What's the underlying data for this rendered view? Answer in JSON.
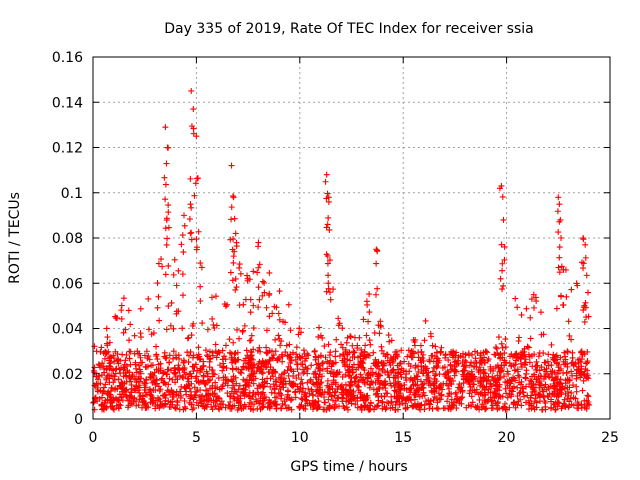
{
  "chart_data": {
    "type": "scatter",
    "title": "Day 335 of 2019, Rate Of TEC Index for receiver ssia",
    "xlabel": "GPS time / hours",
    "ylabel": "ROTI / TECUs",
    "xlim": [
      0,
      25
    ],
    "ylim": [
      0,
      0.16
    ],
    "x_ticks": [
      0,
      5,
      10,
      15,
      20,
      25
    ],
    "x_tick_labels": [
      "0",
      "5",
      "10",
      "15",
      "20",
      "25"
    ],
    "y_ticks": [
      0,
      0.02,
      0.04,
      0.06,
      0.08,
      0.1,
      0.12,
      0.14,
      0.16
    ],
    "y_tick_labels": [
      "0",
      "0.02",
      "0.04",
      "0.06",
      "0.08",
      "0.1",
      "0.12",
      "0.14",
      "0.16"
    ],
    "grid": true,
    "marker": "+",
    "color": "#ff0000",
    "series": [
      {
        "name": "ROTI",
        "description": "Dense scatter of ROTI values over 0-24 h; baseline 0.005-0.03 TECU/s with spikes",
        "baseline_range": [
          0.004,
          0.03
        ],
        "envelope": [
          [
            0.0,
            0.032
          ],
          [
            0.5,
            0.038
          ],
          [
            1.0,
            0.045
          ],
          [
            1.5,
            0.055
          ],
          [
            2.0,
            0.048
          ],
          [
            2.5,
            0.05
          ],
          [
            3.0,
            0.062
          ],
          [
            3.5,
            0.09
          ],
          [
            4.0,
            0.075
          ],
          [
            4.5,
            0.1
          ],
          [
            5.0,
            0.095
          ],
          [
            5.5,
            0.06
          ],
          [
            6.0,
            0.055
          ],
          [
            6.5,
            0.065
          ],
          [
            7.0,
            0.078
          ],
          [
            7.5,
            0.065
          ],
          [
            8.0,
            0.07
          ],
          [
            8.5,
            0.068
          ],
          [
            9.0,
            0.06
          ],
          [
            9.5,
            0.05
          ],
          [
            10.0,
            0.045
          ],
          [
            10.5,
            0.05
          ],
          [
            11.0,
            0.04
          ],
          [
            11.5,
            0.07
          ],
          [
            12.0,
            0.05
          ],
          [
            12.5,
            0.04
          ],
          [
            13.0,
            0.045
          ],
          [
            13.5,
            0.065
          ],
          [
            14.0,
            0.05
          ],
          [
            14.5,
            0.035
          ],
          [
            15.0,
            0.03
          ],
          [
            15.5,
            0.035
          ],
          [
            16.0,
            0.045
          ],
          [
            16.5,
            0.035
          ],
          [
            17.0,
            0.03
          ],
          [
            17.5,
            0.03
          ],
          [
            18.0,
            0.028
          ],
          [
            18.5,
            0.03
          ],
          [
            19.0,
            0.032
          ],
          [
            19.5,
            0.038
          ],
          [
            20.0,
            0.05
          ],
          [
            20.5,
            0.055
          ],
          [
            21.0,
            0.05
          ],
          [
            21.5,
            0.06
          ],
          [
            22.0,
            0.055
          ],
          [
            22.5,
            0.08
          ],
          [
            23.0,
            0.07
          ],
          [
            23.5,
            0.065
          ],
          [
            24.0,
            0.06
          ]
        ],
        "peaks": [
          [
            3.5,
            0.129
          ],
          [
            3.6,
            0.12
          ],
          [
            4.75,
            0.145
          ],
          [
            4.85,
            0.137
          ],
          [
            5.0,
            0.125
          ],
          [
            4.4,
            0.09
          ],
          [
            6.7,
            0.112
          ],
          [
            6.8,
            0.098
          ],
          [
            6.9,
            0.082
          ],
          [
            8.0,
            0.078
          ],
          [
            11.3,
            0.108
          ],
          [
            11.4,
            0.098
          ],
          [
            11.35,
            0.086
          ],
          [
            13.7,
            0.075
          ],
          [
            19.75,
            0.103
          ],
          [
            19.85,
            0.088
          ],
          [
            22.5,
            0.098
          ],
          [
            22.6,
            0.088
          ],
          [
            23.7,
            0.08
          ],
          [
            23.8,
            0.077
          ]
        ]
      }
    ]
  }
}
